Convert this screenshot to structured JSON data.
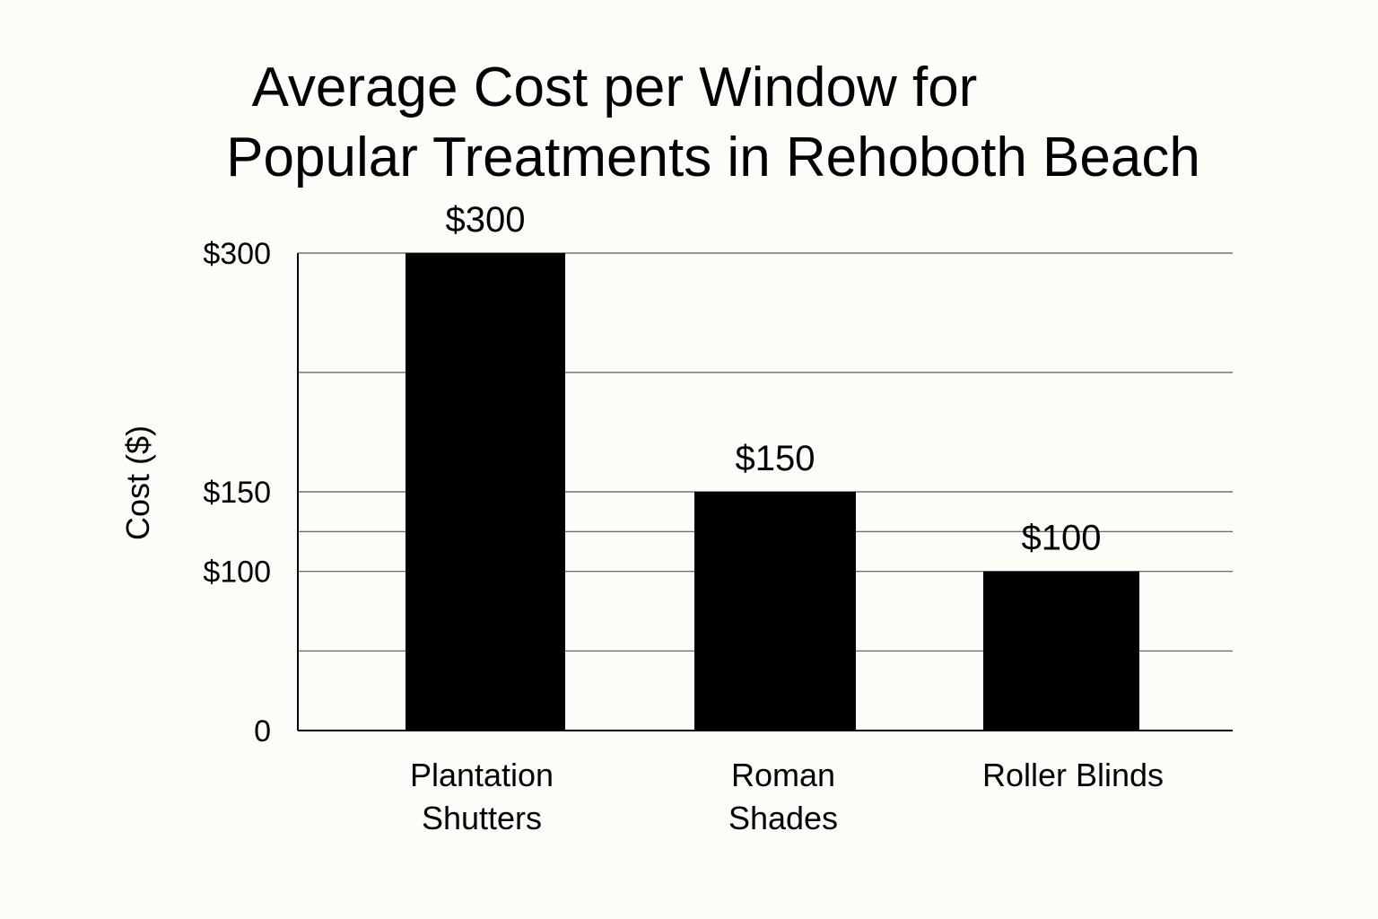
{
  "chart_data": {
    "type": "bar",
    "title_lines": [
      "Average Cost per Window for",
      "Popular Treatments in Rehoboth Beach"
    ],
    "ylabel": "Cost ($)",
    "xlabel": "",
    "categories": [
      [
        "Plantation",
        "Shutters"
      ],
      [
        "Roman",
        "Shades"
      ],
      [
        "Roller Blinds"
      ]
    ],
    "values": [
      300,
      150,
      100
    ],
    "value_labels": [
      "$300",
      "$150",
      "$100"
    ],
    "yticks": [
      {
        "value": 0,
        "label": "0"
      },
      {
        "value": 100,
        "label": "$100"
      },
      {
        "value": 150,
        "label": "$150"
      },
      {
        "value": 300,
        "label": "$300"
      }
    ],
    "ylim": [
      0,
      300
    ],
    "grid": true,
    "bar_color": "#000000",
    "grid_color": "#555555",
    "axis_color": "#000000",
    "background": "#fcfcf8"
  }
}
